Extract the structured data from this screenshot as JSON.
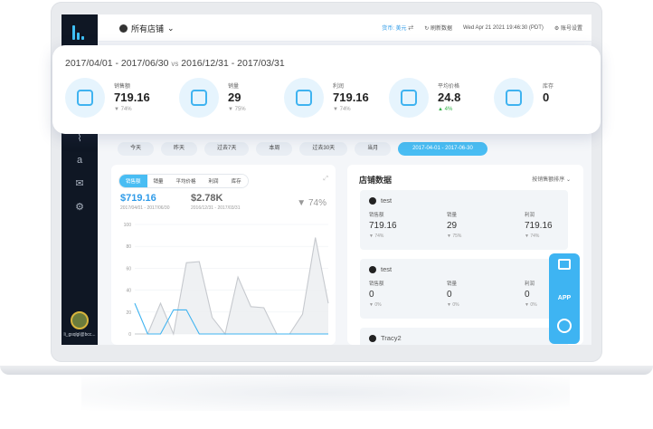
{
  "header": {
    "store_select": "所有店铺",
    "currency_label": "货币:",
    "currency_value": "美元",
    "refresh": "刷新数据",
    "datetime": "Wed Apr 21 2021 19:46:30 (PDT)",
    "account_settings": "账号设置"
  },
  "sidebar": {
    "user_name": "li_gsqlgl@bcc..."
  },
  "summary": {
    "period": "2017/04/01 - 2017/06/30",
    "vs": "vs",
    "compare_period": "2016/12/31 - 2017/03/31",
    "metrics": [
      {
        "label": "销售额",
        "value": "719.16",
        "change": "▼ 74%",
        "icon": "coins-icon"
      },
      {
        "label": "销量",
        "value": "29",
        "change": "▼ 75%",
        "icon": "trend-chart-icon"
      },
      {
        "label": "利润",
        "value": "719.16",
        "change": "▼ 74%",
        "icon": "profit-icon"
      },
      {
        "label": "平均价格",
        "value": "24.8",
        "change": "▲ 4%",
        "icon": "price-tag-icon"
      },
      {
        "label": "库存",
        "value": "0",
        "change": "",
        "icon": "warehouse-icon"
      }
    ]
  },
  "ranges": [
    "今天",
    "昨天",
    "过去7天",
    "本周",
    "过去30天",
    "当月",
    "2017-04-01 - 2017-06-30"
  ],
  "chart": {
    "tabs": [
      "销售额",
      "销量",
      "平均价格",
      "利润",
      "库存"
    ],
    "current_value": "$719.16",
    "current_period": "2017/04/01 - 2017/06/30",
    "previous_value": "$2.78K",
    "previous_period": "2016/12/31 - 2017/03/31",
    "change": "▼ 74%"
  },
  "chart_data": {
    "type": "area",
    "title": "",
    "xlabel": "",
    "ylabel": "",
    "ylim": [
      0,
      100
    ],
    "yticks": [
      0,
      20,
      40,
      60,
      80,
      100
    ],
    "grid": true,
    "series": [
      {
        "values": [
          0,
          0,
          28,
          0,
          65,
          66,
          15,
          0,
          52,
          25,
          24,
          0,
          0,
          18,
          88,
          28
        ],
        "color": "#c6c9ce"
      },
      {
        "values": [
          28,
          0,
          0,
          22,
          22,
          0,
          0,
          0,
          0,
          0,
          0,
          0,
          0,
          0,
          0,
          0
        ],
        "color": "#3fb3f0"
      }
    ]
  },
  "store_panel": {
    "title": "店铺数据",
    "sort": "按销售额排序",
    "stores": [
      {
        "name": "test",
        "cols": [
          {
            "label": "销售额",
            "value": "719.16",
            "change": "▼ 74%"
          },
          {
            "label": "销量",
            "value": "29",
            "change": "▼ 75%"
          },
          {
            "label": "利润",
            "value": "719.16",
            "change": "▼ 74%"
          }
        ]
      },
      {
        "name": "test",
        "cols": [
          {
            "label": "销售额",
            "value": "0",
            "change": "▼ 0%"
          },
          {
            "label": "销量",
            "value": "0",
            "change": "▼ 0%"
          },
          {
            "label": "利润",
            "value": "0",
            "change": "▼ 0%"
          }
        ]
      },
      {
        "name": "Tracy2",
        "cols": []
      }
    ]
  },
  "fab": {
    "app_label": "APP"
  }
}
